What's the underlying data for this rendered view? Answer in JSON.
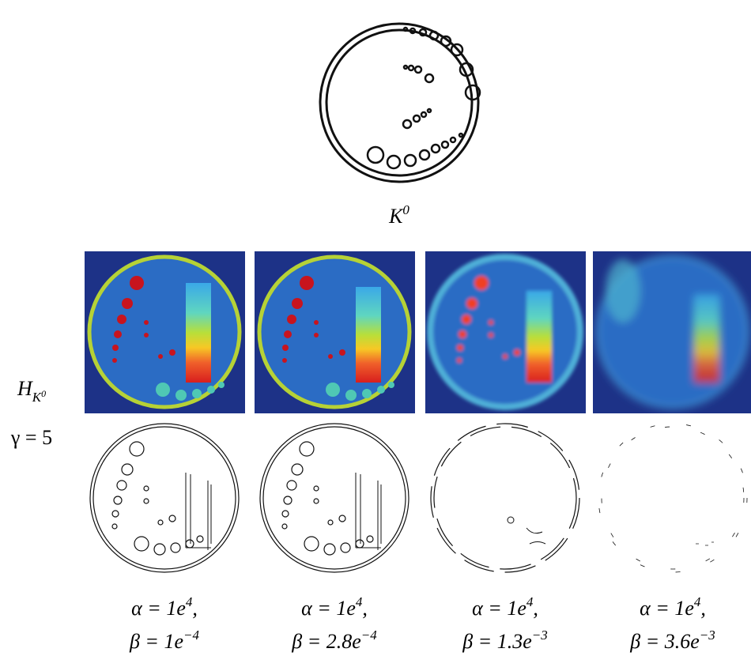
{
  "top": {
    "label": {
      "base": "K",
      "sup": "0"
    }
  },
  "row_labels": {
    "h": {
      "base": "H",
      "sub": "K",
      "subsup": "0"
    },
    "gamma": "γ = 5"
  },
  "panels": [
    {
      "alpha": {
        "base": "α = 1e",
        "sup": "4",
        "tail": ","
      },
      "beta": {
        "base": "β = 1e",
        "sup": "−4"
      }
    },
    {
      "alpha": {
        "base": "α = 1e",
        "sup": "4",
        "tail": ","
      },
      "beta": {
        "base": "β = 2.8e",
        "sup": "−4"
      }
    },
    {
      "alpha": {
        "base": "α = 1e",
        "sup": "4",
        "tail": ","
      },
      "beta": {
        "base": "β = 1.3e",
        "sup": "−3"
      }
    },
    {
      "alpha": {
        "base": "α = 1e",
        "sup": "4",
        "tail": ","
      },
      "beta": {
        "base": "β = 3.6e",
        "sup": "−3"
      }
    }
  ]
}
